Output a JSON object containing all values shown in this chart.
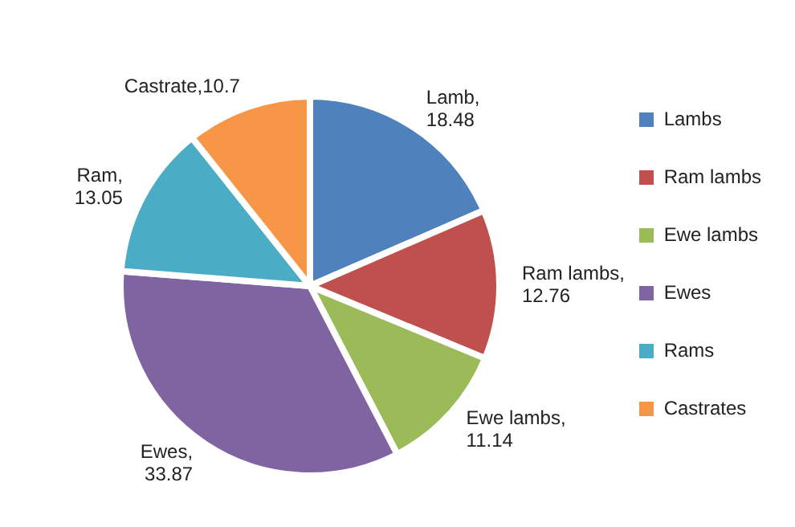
{
  "chart_data": {
    "type": "pie",
    "categories": [
      "Lambs",
      "Ram lambs",
      "Ewe lambs",
      "Ewes",
      "Rams",
      "Castrates"
    ],
    "values": [
      18.48,
      12.76,
      11.14,
      33.87,
      13.05,
      10.7
    ],
    "colors": [
      "#4f81bd",
      "#c0504d",
      "#9bbb59",
      "#8064a2",
      "#4bacc6",
      "#f79646"
    ],
    "value_labels": [
      "Lamb, 18.48",
      "Ram lambs, 12.76",
      "Ewe lambs, 11.14",
      "Ewes, 33.87",
      "Ram, 13.05",
      "Castrate,10.7"
    ],
    "legend": "right"
  }
}
